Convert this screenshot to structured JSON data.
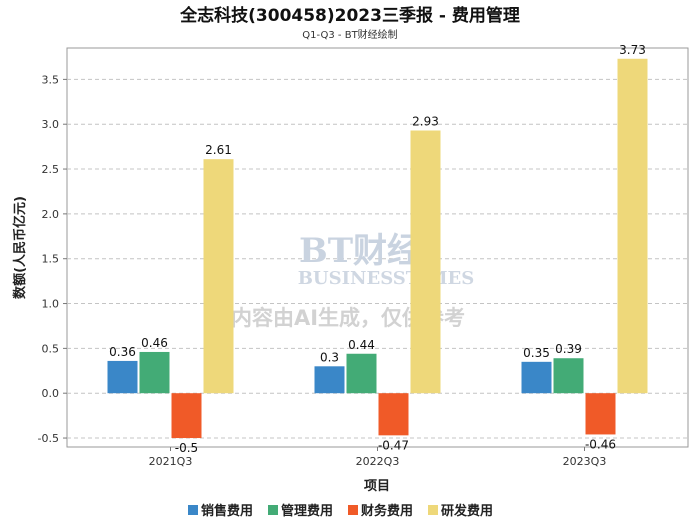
{
  "chart_data": {
    "type": "bar",
    "title": "全志科技(300458)2023三季报 - 费用管理",
    "subtitle": "Q1-Q3 - BT财经绘制",
    "xlabel": "项目",
    "ylabel": "数额(人民币亿元)",
    "categories": [
      "2021Q3",
      "2022Q3",
      "2023Q3"
    ],
    "ylim": [
      -0.6,
      3.85
    ],
    "yticks": [
      -0.5,
      0.0,
      0.5,
      1.0,
      1.5,
      2.0,
      2.5,
      3.0,
      3.5
    ],
    "grid": true,
    "legend_position": "bottom",
    "series": [
      {
        "name": "销售费用",
        "color": "#3a87c8",
        "values": [
          0.36,
          0.3,
          0.35
        ]
      },
      {
        "name": "管理费用",
        "color": "#43ab76",
        "values": [
          0.46,
          0.44,
          0.39
        ]
      },
      {
        "name": "财务费用",
        "color": "#f05a28",
        "values": [
          -0.5,
          -0.47,
          -0.46
        ]
      },
      {
        "name": "研发费用",
        "color": "#eed87a",
        "values": [
          2.61,
          2.93,
          3.73
        ]
      }
    ]
  },
  "watermark": {
    "brand": "BT财经",
    "brand_en": "BUSINESSTIMES",
    "notice": "内容由AI生成，仅供参考"
  }
}
